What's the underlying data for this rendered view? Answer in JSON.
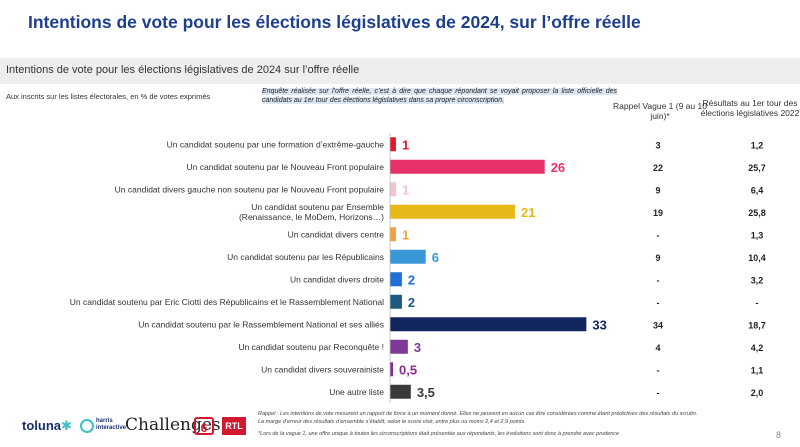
{
  "header": {
    "title": "Intentions de vote pour les élections législatives de 2024, sur l’offre réelle",
    "band_subtitle": "Intentions de vote pour les élections législatives de 2024 sur l’offre réelle",
    "unit_note": "Aux inscrits sur les listes électorales, en % de votes exprimés",
    "method_note": "Enquête réalisée sur l’offre réelle, c’est à dire que chaque répondant se voyait proposer la liste officielle des candidats au 1er tour des élections législatives dans sa propre circonscription."
  },
  "columns": {
    "rappel_header": "Rappel Vague 1 (9 au 10 juin)*",
    "resultats_header": "Résultats au 1er tour des élections législatives 2022"
  },
  "chart_data": {
    "type": "bar",
    "orientation": "horizontal",
    "categories": [
      "Un candidat soutenu par une formation d’extrême-gauche",
      "Un candidat soutenu par le Nouveau Front populaire",
      "Un candidat divers gauche non soutenu par le Nouveau Front populaire",
      "Un candidat soutenu par Ensemble (Renaissance, le MoDem, Horizons…)",
      "Un candidat divers centre",
      "Un candidat soutenu par les Républicains",
      "Un candidat divers droite",
      "Un candidat soutenu par Eric Ciotti des Républicains et le Rassemblement National",
      "Un candidat soutenu par le Rassemblement National et ses alliés",
      "Un candidat soutenu par Reconquête !",
      "Un candidat divers souverainiste",
      "Une autre liste"
    ],
    "values": [
      1,
      26,
      1,
      21,
      1,
      6,
      2,
      2,
      33,
      3,
      0.5,
      3.5
    ],
    "value_labels": [
      "1",
      "26",
      "1",
      "21",
      "1",
      "6",
      "2",
      "2",
      "33",
      "3",
      "0,5",
      "3,5"
    ],
    "colors": [
      "#e2182e",
      "#e8316a",
      "#f6c4c9",
      "#e7b818",
      "#f2a23a",
      "#3a97d6",
      "#1f6fd9",
      "#1c5a82",
      "#14265e",
      "#7e3a96",
      "#8e2a8f",
      "#3a3a3a"
    ],
    "rappel_vague1": [
      "3",
      "22",
      "9",
      "19",
      "-",
      "9",
      "-",
      "-",
      "34",
      "4",
      "-",
      "-"
    ],
    "resultats_2022": [
      "1,2",
      "25,7",
      "6,4",
      "25,8",
      "1,3",
      "10,4",
      "3,2",
      "-",
      "18,7",
      "4,2",
      "1,1",
      "2,0"
    ]
  },
  "footer": {
    "note_1": "Rappel : Les intentions de vote mesurent un rapport de force à un moment donné. Elles ne peuvent en aucun cas être considérées comme étant prédictives des résultats du scrutin.",
    "note_2": "La marge d’erreur des résultats d’ensemble s’établit, selon le score visé, entre plus ou moins 2,4 et 2,9 points.",
    "note_3": "*Lors de la vague 1, une offre unique à toutes les circonscriptions était présentée aux répondants, les évolutions sont donc à prendre avec prudence",
    "page_number": "8",
    "logos": {
      "toluna": "toluna",
      "harris": "harris interactive",
      "challenges": "Challenges",
      "m6": "6",
      "rtl": "RTL"
    }
  }
}
